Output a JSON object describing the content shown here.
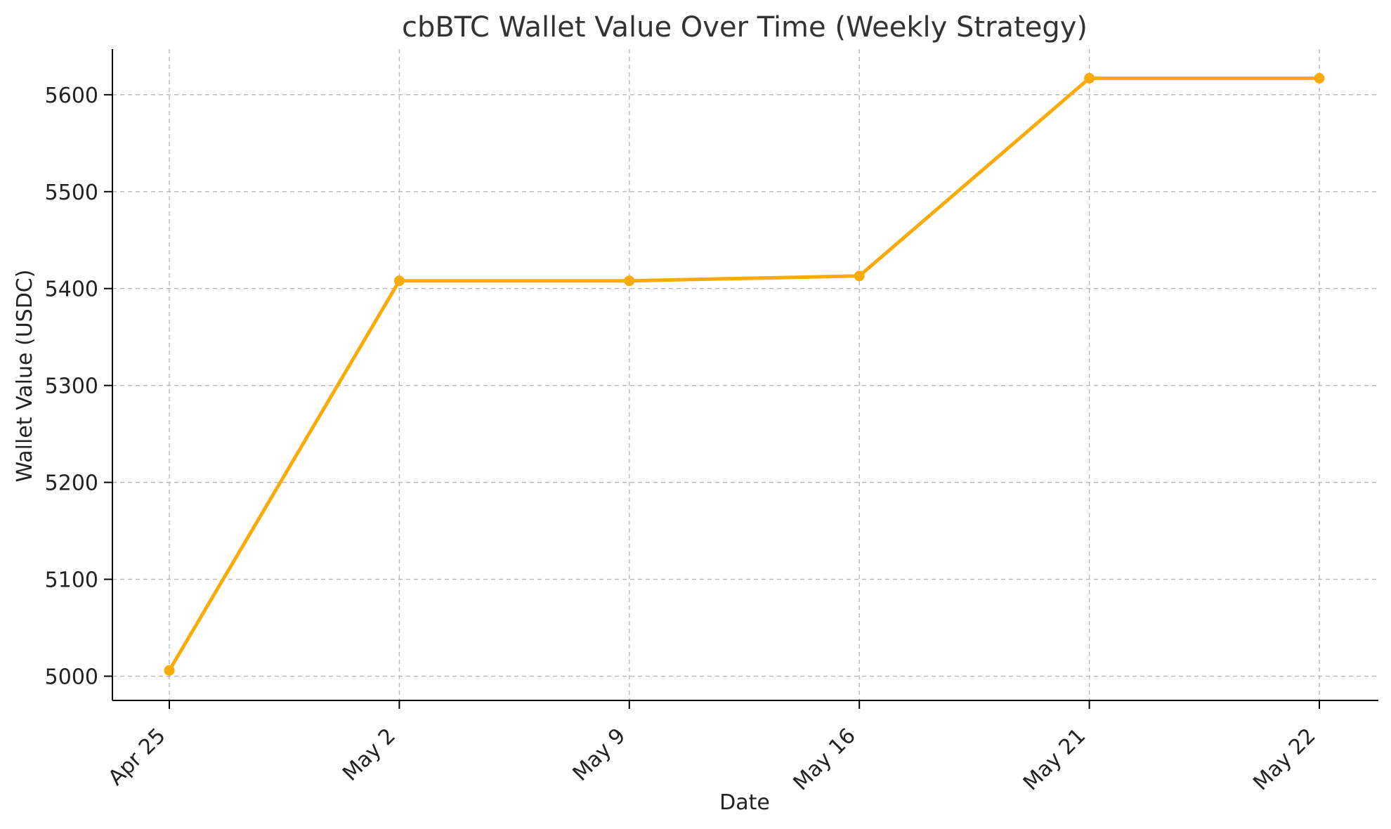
{
  "chart_data": {
    "type": "line",
    "title": "cbBTC Wallet Value Over Time (Weekly Strategy)",
    "xlabel": "Date",
    "ylabel": "Wallet Value (USDC)",
    "x": [
      "Apr 25",
      "May 2",
      "May 9",
      "May 16",
      "May 21",
      "May 22"
    ],
    "series": [
      {
        "values": [
          5006,
          5408,
          5408,
          5413,
          5617,
          5617
        ],
        "color": "#f9ab0a"
      }
    ],
    "y_ticks": [
      5000,
      5100,
      5200,
      5300,
      5400,
      5500,
      5600
    ],
    "ylim": [
      4975,
      5647
    ],
    "grid": true
  }
}
